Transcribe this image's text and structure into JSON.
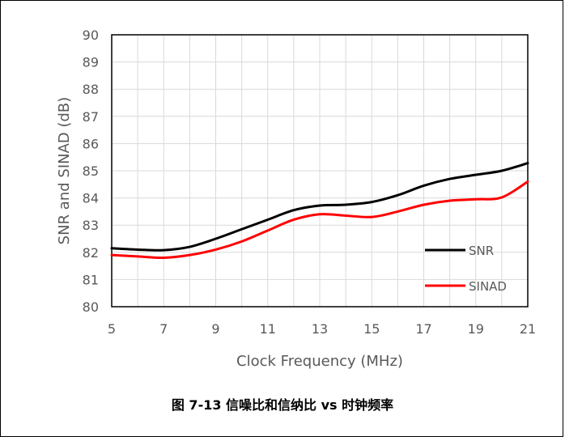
{
  "caption": "图 7-13 信噪比和信纳比 vs 时钟频率",
  "chart_data": {
    "type": "line",
    "xlabel": "Clock Frequency (MHz)",
    "ylabel": "SNR and SINAD (dB)",
    "xlim": [
      5,
      21
    ],
    "ylim": [
      80,
      90
    ],
    "xticks": [
      5,
      7,
      9,
      11,
      13,
      15,
      17,
      19,
      21
    ],
    "yticks": [
      80,
      81,
      82,
      83,
      84,
      85,
      86,
      87,
      88,
      89,
      90
    ],
    "grid": true,
    "legend_position": "bottom-right",
    "series": [
      {
        "name": "SNR",
        "color": "#000000",
        "x": [
          5,
          6,
          7,
          8,
          9,
          10,
          11,
          12,
          13,
          14,
          15,
          16,
          17,
          18,
          19,
          20,
          21
        ],
        "values": [
          82.15,
          82.1,
          82.08,
          82.2,
          82.5,
          82.85,
          83.2,
          83.55,
          83.72,
          83.75,
          83.85,
          84.1,
          84.45,
          84.7,
          84.85,
          85.0,
          85.28
        ]
      },
      {
        "name": "SINAD",
        "color": "#ff0000",
        "x": [
          5,
          6,
          7,
          8,
          9,
          10,
          11,
          12,
          13,
          14,
          15,
          16,
          17,
          18,
          19,
          20,
          21
        ],
        "values": [
          81.9,
          81.85,
          81.8,
          81.9,
          82.1,
          82.4,
          82.8,
          83.2,
          83.4,
          83.35,
          83.3,
          83.5,
          83.75,
          83.9,
          83.95,
          84.02,
          84.6
        ]
      }
    ]
  }
}
